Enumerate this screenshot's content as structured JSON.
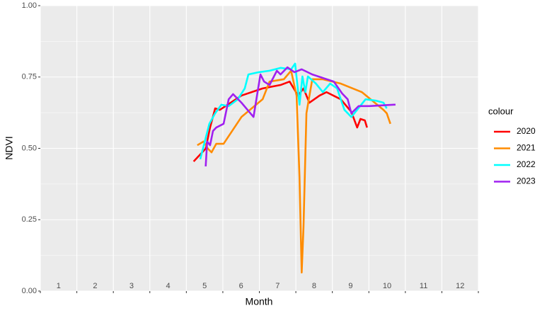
{
  "chart_data": {
    "type": "line",
    "x_label": "Month",
    "y_label": "NDVI",
    "legend_title": "colour",
    "xlim": [
      0,
      12
    ],
    "xticks": [
      0,
      1,
      2,
      3,
      4,
      5,
      6,
      7,
      8,
      9,
      10,
      11,
      12
    ],
    "month_labels": [
      {
        "value": 0.5,
        "label": "1"
      },
      {
        "value": 1.5,
        "label": "2"
      },
      {
        "value": 2.5,
        "label": "3"
      },
      {
        "value": 3.5,
        "label": "4"
      },
      {
        "value": 4.5,
        "label": "5"
      },
      {
        "value": 5.5,
        "label": "6"
      },
      {
        "value": 6.5,
        "label": "7"
      },
      {
        "value": 7.5,
        "label": "8"
      },
      {
        "value": 8.5,
        "label": "9"
      },
      {
        "value": 9.5,
        "label": "10"
      },
      {
        "value": 10.5,
        "label": "11"
      },
      {
        "value": 11.5,
        "label": "12"
      }
    ],
    "ylim": [
      0,
      1
    ],
    "yticks": [
      {
        "value": 0,
        "label": "0.00"
      },
      {
        "value": 0.25,
        "label": "0.25"
      },
      {
        "value": 0.5,
        "label": "0.50"
      },
      {
        "value": 0.75,
        "label": "0.75"
      },
      {
        "value": 1,
        "label": "1.00"
      }
    ],
    "grid": true,
    "legend_position": "right",
    "series": [
      {
        "name": "2020",
        "color": "#ff0000",
        "x": [
          4.2,
          4.53,
          4.65,
          4.79,
          4.92,
          5.51,
          6.09,
          6.58,
          6.83,
          7.06,
          7.21,
          7.37,
          7.65,
          7.84,
          8.23,
          8.52,
          8.68,
          8.77,
          8.89,
          8.95
        ],
        "values": [
          0.454,
          0.499,
          0.573,
          0.64,
          0.635,
          0.685,
          0.71,
          0.722,
          0.734,
          0.685,
          0.71,
          0.66,
          0.685,
          0.697,
          0.672,
          0.628,
          0.573,
          0.603,
          0.598,
          0.573
        ]
      },
      {
        "name": "2021",
        "color": "#ff8c00",
        "x": [
          4.3,
          4.47,
          4.59,
          4.69,
          4.82,
          5.02,
          5.51,
          6.09,
          6.28,
          6.67,
          6.87,
          7.02,
          7.1,
          7.16,
          7.21,
          7.29,
          7.45,
          7.74,
          8.23,
          8.81,
          9.4,
          9.49,
          9.59
        ],
        "values": [
          0.511,
          0.524,
          0.499,
          0.486,
          0.516,
          0.516,
          0.61,
          0.672,
          0.734,
          0.742,
          0.772,
          0.685,
          0.4,
          0.065,
          0.226,
          0.623,
          0.742,
          0.742,
          0.727,
          0.697,
          0.635,
          0.623,
          0.586
        ]
      },
      {
        "name": "2022",
        "color": "#00ffff",
        "x": [
          4.38,
          4.53,
          4.63,
          4.79,
          4.96,
          5.16,
          5.41,
          5.6,
          5.7,
          5.99,
          6.28,
          6.58,
          6.87,
          6.98,
          7.1,
          7.18,
          7.26,
          7.33,
          7.55,
          7.74,
          7.94,
          8.13,
          8.33,
          8.52,
          8.68,
          8.91,
          9.2,
          9.4,
          9.49
        ],
        "values": [
          0.462,
          0.536,
          0.586,
          0.623,
          0.653,
          0.648,
          0.672,
          0.71,
          0.759,
          0.767,
          0.772,
          0.782,
          0.777,
          0.797,
          0.653,
          0.752,
          0.697,
          0.752,
          0.727,
          0.697,
          0.727,
          0.71,
          0.635,
          0.61,
          0.635,
          0.672,
          0.667,
          0.66,
          0.64
        ]
      },
      {
        "name": "2023",
        "color": "#a020f0",
        "x": [
          4.53,
          4.57,
          4.65,
          4.73,
          4.82,
          5.02,
          5.16,
          5.28,
          5.51,
          5.84,
          6.03,
          6.13,
          6.28,
          6.48,
          6.58,
          6.77,
          6.96,
          7.16,
          7.45,
          8.04,
          8.27,
          8.42,
          8.52,
          8.72,
          9.01,
          9.69,
          9.73
        ],
        "values": [
          0.437,
          0.524,
          0.511,
          0.561,
          0.573,
          0.586,
          0.672,
          0.69,
          0.66,
          0.61,
          0.759,
          0.734,
          0.722,
          0.772,
          0.759,
          0.784,
          0.767,
          0.777,
          0.759,
          0.734,
          0.692,
          0.672,
          0.623,
          0.648,
          0.648,
          0.653,
          0.653
        ]
      }
    ]
  }
}
